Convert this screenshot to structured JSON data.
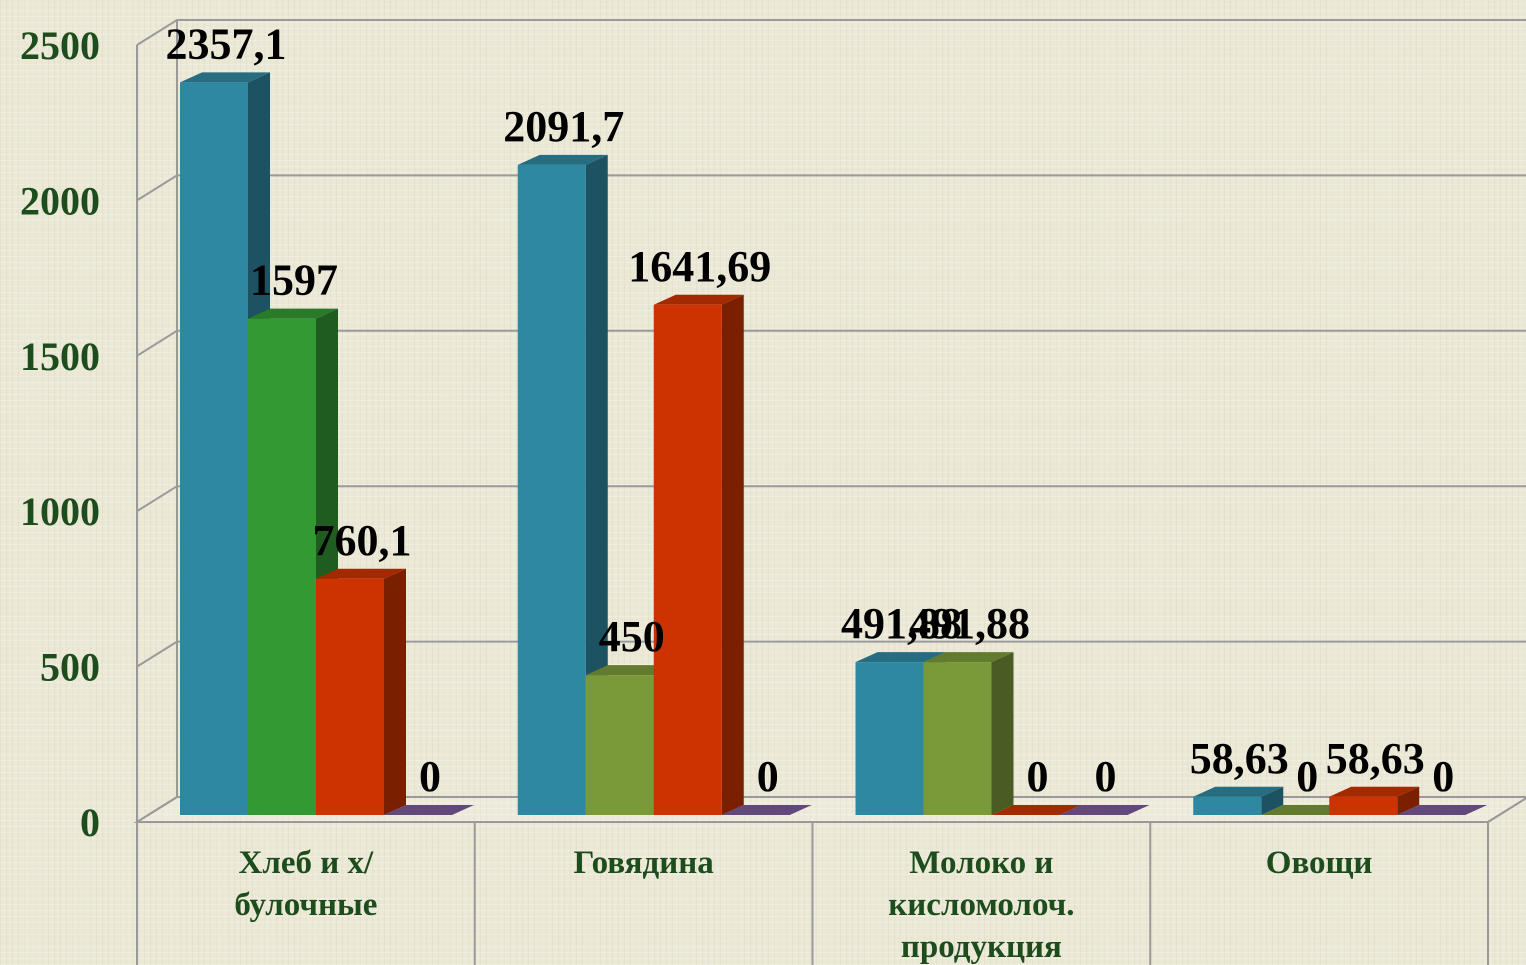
{
  "chart_data": {
    "type": "bar3d",
    "categories": [
      "Хлеб и х/булочные",
      "Говядина",
      "Молоко и кисломолоч. продукция",
      "Овощи"
    ],
    "series": [
      {
        "color": "#2f88a2",
        "values": [
          2357.1,
          2091.7,
          491.88,
          58.63
        ],
        "value_labels": [
          "2357,1",
          "2091,7",
          "491,88",
          "58,63"
        ]
      },
      {
        "color": "#7a9a3a",
        "colors": [
          "#339933",
          "#7a9a3a",
          "#7a9a3a",
          "#7a9a3a"
        ],
        "values": [
          1597,
          450,
          491.88,
          0
        ],
        "value_labels": [
          "1597",
          "450",
          "491,88",
          "0"
        ]
      },
      {
        "color": "#cc3300",
        "values": [
          760.1,
          1641.69,
          0,
          58.63
        ],
        "value_labels": [
          "760,1",
          "1641,69",
          "0",
          "58,63"
        ]
      },
      {
        "color": "#7a5a9a",
        "values": [
          0,
          0,
          0,
          0
        ],
        "value_labels": [
          "0",
          "0",
          "0",
          "0"
        ]
      }
    ],
    "ylim": [
      0,
      2500
    ],
    "yticks": [
      0,
      500,
      1000,
      1500,
      2000,
      2500
    ],
    "grid": true
  }
}
